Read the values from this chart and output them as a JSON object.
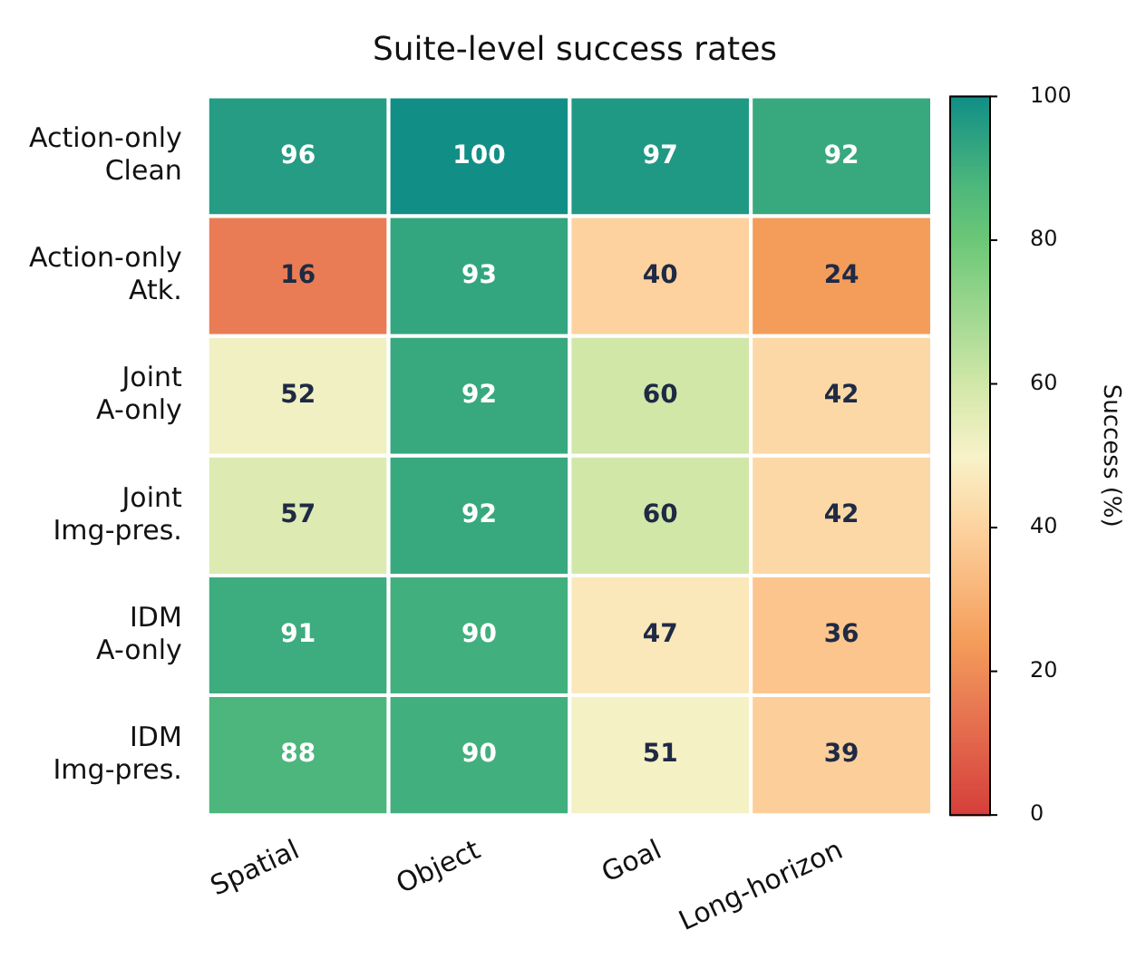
{
  "chart_data": {
    "type": "heatmap",
    "title": "Suite-level success rates",
    "clabel": "Success (%)",
    "categories": [
      "Spatial",
      "Object",
      "Goal",
      "Long-horizon"
    ],
    "y_categories": [
      "Action-only\nClean",
      "Action-only\nAtk.",
      "Joint\nA-only",
      "Joint\nImg-pres.",
      "IDM\nA-only",
      "IDM\nImg-pres."
    ],
    "cells": [
      [
        96,
        100,
        97,
        92
      ],
      [
        16,
        93,
        40,
        24
      ],
      [
        52,
        92,
        60,
        42
      ],
      [
        57,
        92,
        60,
        42
      ],
      [
        91,
        90,
        47,
        36
      ],
      [
        88,
        90,
        51,
        39
      ]
    ],
    "clim": [
      0,
      100
    ],
    "cticks": [
      0,
      20,
      40,
      60,
      80,
      100
    ],
    "data_labels": true
  }
}
